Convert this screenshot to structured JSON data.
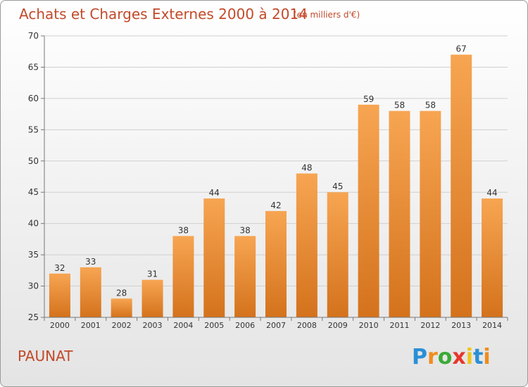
{
  "chart_data": {
    "type": "bar",
    "title": "Achats et Charges Externes 2000 à 2014",
    "subtitle": "(en milliers d'€)",
    "categories": [
      "2000",
      "2001",
      "2002",
      "2003",
      "2004",
      "2005",
      "2006",
      "2007",
      "2008",
      "2009",
      "2010",
      "2011",
      "2012",
      "2013",
      "2014"
    ],
    "values": [
      32,
      33,
      28,
      31,
      38,
      44,
      38,
      42,
      48,
      45,
      59,
      58,
      58,
      67,
      44
    ],
    "ylim": [
      25,
      70
    ],
    "yticks": [
      25,
      30,
      35,
      40,
      45,
      50,
      55,
      60,
      65,
      70
    ],
    "grid": true,
    "bar_color_top": "#f7a552",
    "bar_color_bottom": "#d4721c"
  },
  "footer": {
    "commune": "PAUNAT",
    "brand_letters": [
      "P",
      "r",
      "o",
      "x",
      "i",
      "t",
      "i"
    ],
    "brand_colors": [
      "#2b8fd6",
      "#f08c1c",
      "#3aaa35",
      "#e8362b",
      "#f0c419",
      "#2b8fd6",
      "#f08c1c"
    ]
  }
}
